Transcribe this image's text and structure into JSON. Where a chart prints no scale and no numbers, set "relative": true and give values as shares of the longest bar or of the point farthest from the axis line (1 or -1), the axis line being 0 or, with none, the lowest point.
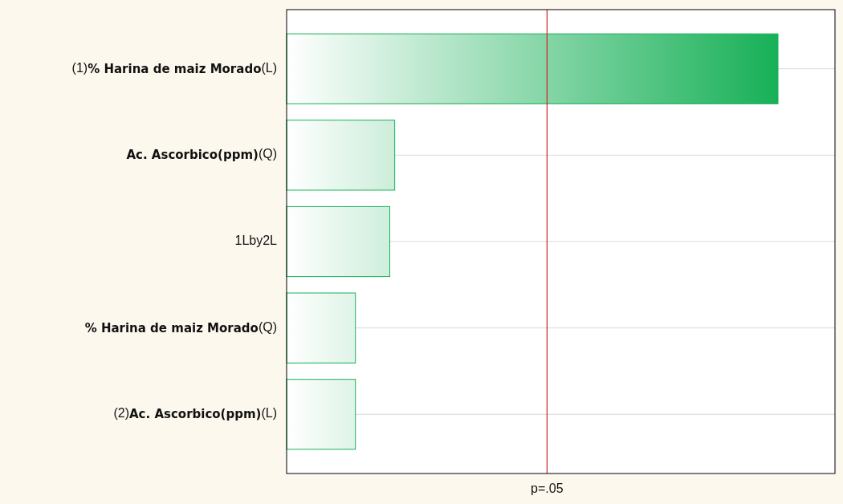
{
  "chart_data": {
    "type": "bar",
    "orientation": "horizontal",
    "relative": true,
    "categories": [
      "(1)% Harina de maiz Morado(L)",
      "Ac. Ascorbico(ppm)(Q)",
      "1Lby2L",
      "% Harina de maiz Morado(Q)",
      "(2)Ac. Ascorbico(ppm)(L)"
    ],
    "values": [
      1,
      0.22,
      0.21,
      0.14,
      0.14
    ],
    "color": "#17b057",
    "grid": "y",
    "ref_lines": [
      {
        "axis": "x",
        "value": 0.53,
        "label": "p=.05",
        "color": "#d42020"
      }
    ]
  }
}
